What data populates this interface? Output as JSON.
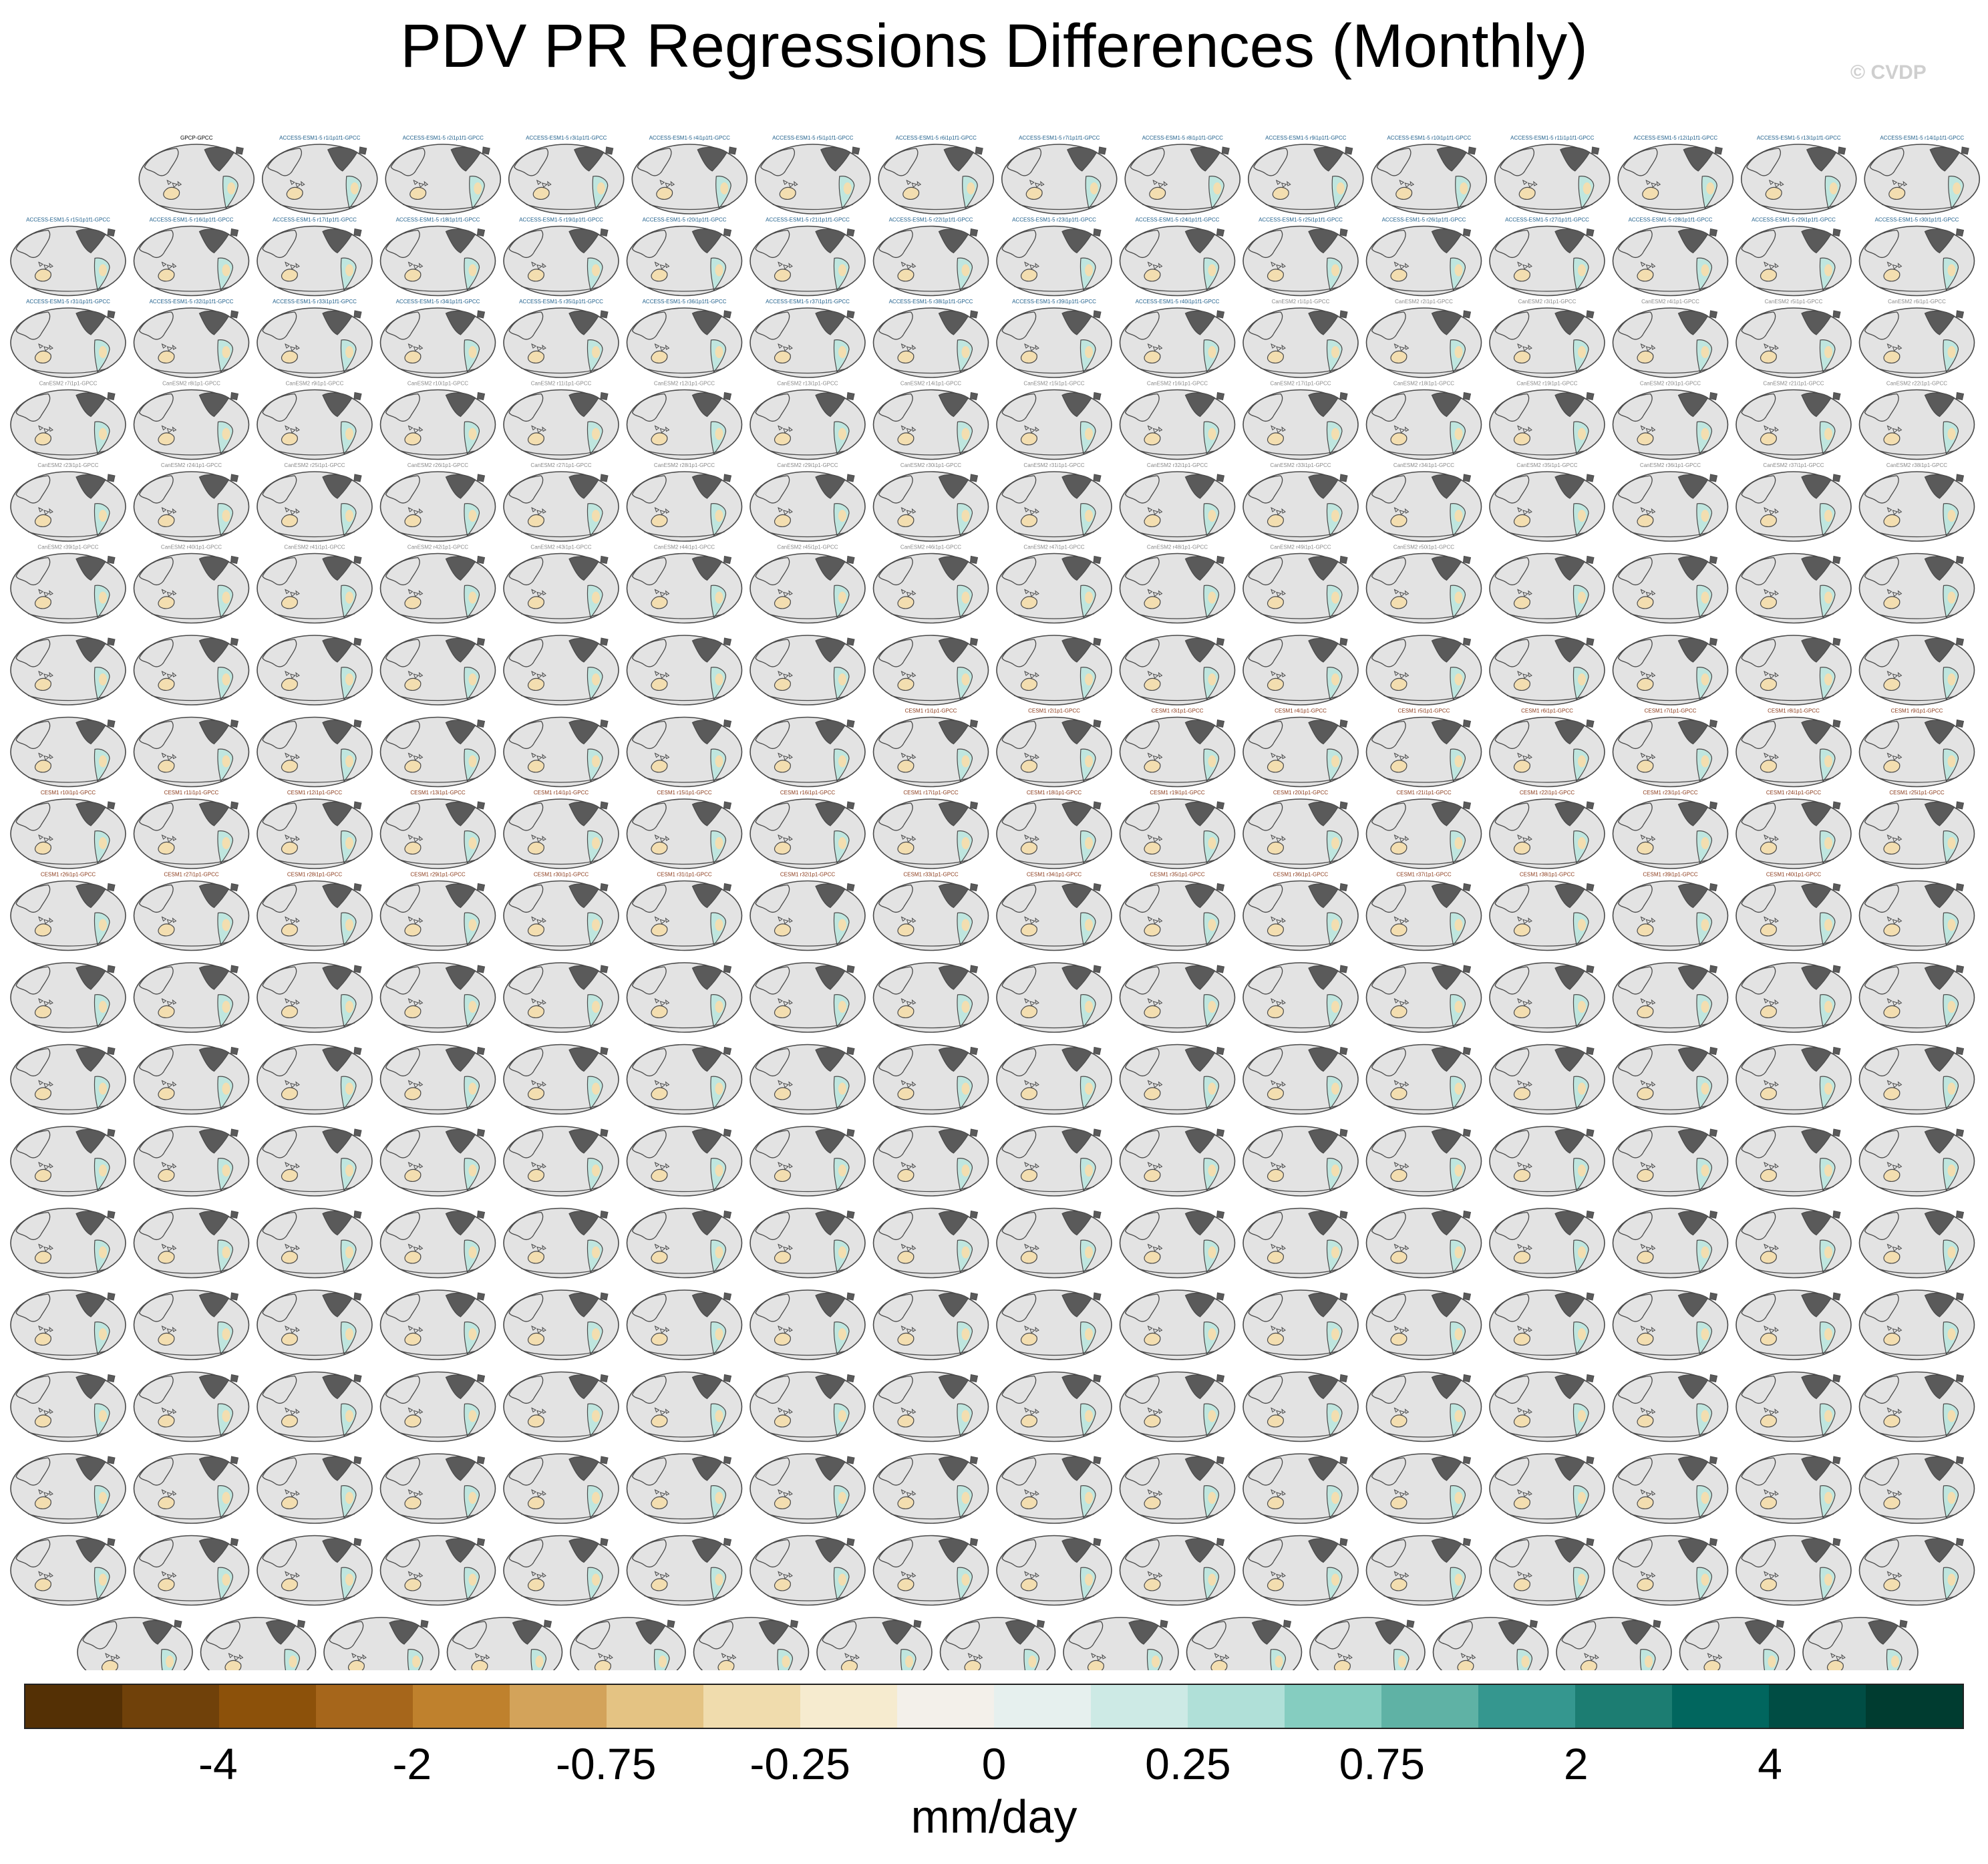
{
  "title": "PDV PR Regressions Differences (Monthly)",
  "credit": "© CVDP",
  "chart_data": {
    "type": "heatmap",
    "description_type": "small-multiples global map panels",
    "layout": {
      "rows": [
        15,
        16,
        16,
        16,
        16,
        16,
        16,
        16,
        16,
        16,
        16,
        16,
        16,
        16,
        16,
        16,
        16,
        16,
        15
      ]
    },
    "panel_titles": [
      "GPCP-GPCC",
      "ACCESS-ESM1-5 r1i1p1f1-GPCC",
      "ACCESS-ESM1-5 r2i1p1f1-GPCC",
      "ACCESS-ESM1-5 r3i1p1f1-GPCC",
      "ACCESS-ESM1-5 r4i1p1f1-GPCC",
      "ACCESS-ESM1-5 r5i1p1f1-GPCC",
      "ACCESS-ESM1-5 r6i1p1f1-GPCC",
      "ACCESS-ESM1-5 r7i1p1f1-GPCC",
      "ACCESS-ESM1-5 r8i1p1f1-GPCC",
      "ACCESS-ESM1-5 r9i1p1f1-GPCC",
      "ACCESS-ESM1-5 r10i1p1f1-GPCC",
      "ACCESS-ESM1-5 r11i1p1f1-GPCC",
      "ACCESS-ESM1-5 r12i1p1f1-GPCC",
      "ACCESS-ESM1-5 r13i1p1f1-GPCC",
      "ACCESS-ESM1-5 r14i1p1f1-GPCC",
      "ACCESS-ESM1-5 r15i1p1f1-GPCC",
      "ACCESS-ESM1-5 r16i1p1f1-GPCC",
      "ACCESS-ESM1-5 r17i1p1f1-GPCC",
      "ACCESS-ESM1-5 r18i1p1f1-GPCC",
      "ACCESS-ESM1-5 r19i1p1f1-GPCC",
      "ACCESS-ESM1-5 r20i1p1f1-GPCC",
      "ACCESS-ESM1-5 r21i1p1f1-GPCC",
      "ACCESS-ESM1-5 r22i1p1f1-GPCC",
      "ACCESS-ESM1-5 r23i1p1f1-GPCC",
      "ACCESS-ESM1-5 r24i1p1f1-GPCC",
      "ACCESS-ESM1-5 r25i1p1f1-GPCC",
      "ACCESS-ESM1-5 r26i1p1f1-GPCC",
      "ACCESS-ESM1-5 r27i1p1f1-GPCC",
      "ACCESS-ESM1-5 r28i1p1f1-GPCC",
      "ACCESS-ESM1-5 r29i1p1f1-GPCC",
      "ACCESS-ESM1-5 r30i1p1f1-GPCC",
      "ACCESS-ESM1-5 r31i1p1f1-GPCC",
      "ACCESS-ESM1-5 r32i1p1f1-GPCC",
      "ACCESS-ESM1-5 r33i1p1f1-GPCC",
      "ACCESS-ESM1-5 r34i1p1f1-GPCC",
      "ACCESS-ESM1-5 r35i1p1f1-GPCC",
      "ACCESS-ESM1-5 r36i1p1f1-GPCC",
      "ACCESS-ESM1-5 r37i1p1f1-GPCC",
      "ACCESS-ESM1-5 r38i1p1f1-GPCC",
      "ACCESS-ESM1-5 r39i1p1f1-GPCC",
      "ACCESS-ESM1-5 r40i1p1f1-GPCC",
      "CanESM2 r1i1p1-GPCC",
      "CanESM2 r2i1p1-GPCC",
      "CanESM2 r3i1p1-GPCC",
      "CanESM2 r4i1p1-GPCC",
      "CanESM2 r5i1p1-GPCC",
      "CanESM2 r6i1p1-GPCC",
      "CanESM2 r7i1p1-GPCC",
      "CanESM2 r8i1p1-GPCC",
      "CanESM2 r9i1p1-GPCC",
      "CanESM2 r10i1p1-GPCC",
      "CanESM2 r11i1p1-GPCC",
      "CanESM2 r12i1p1-GPCC",
      "CanESM2 r13i1p1-GPCC",
      "CanESM2 r14i1p1-GPCC",
      "CanESM2 r15i1p1-GPCC",
      "CanESM2 r16i1p1-GPCC",
      "CanESM2 r17i1p1-GPCC",
      "CanESM2 r18i1p1-GPCC",
      "CanESM2 r19i1p1-GPCC",
      "CanESM2 r20i1p1-GPCC",
      "CanESM2 r21i1p1-GPCC",
      "CanESM2 r22i1p1-GPCC",
      "CanESM2 r23i1p1-GPCC",
      "CanESM2 r24i1p1-GPCC",
      "CanESM2 r25i1p1-GPCC",
      "CanESM2 r26i1p1-GPCC",
      "CanESM2 r27i1p1-GPCC",
      "CanESM2 r28i1p1-GPCC",
      "CanESM2 r29i1p1-GPCC",
      "CanESM2 r30i1p1-GPCC",
      "CanESM2 r31i1p1-GPCC",
      "CanESM2 r32i1p1-GPCC",
      "CanESM2 r33i1p1-GPCC",
      "CanESM2 r34i1p1-GPCC",
      "CanESM2 r35i1p1-GPCC",
      "CanESM2 r36i1p1-GPCC",
      "CanESM2 r37i1p1-GPCC",
      "CanESM2 r38i1p1-GPCC",
      "CanESM2 r39i1p1-GPCC",
      "CanESM2 r40i1p1-GPCC",
      "CanESM2 r41i1p1-GPCC",
      "CanESM2 r42i1p1-GPCC",
      "CanESM2 r43i1p1-GPCC",
      "CanESM2 r44i1p1-GPCC",
      "CanESM2 r45i1p1-GPCC",
      "CanESM2 r46i1p1-GPCC",
      "CanESM2 r47i1p1-GPCC",
      "CanESM2 r48i1p1-GPCC",
      "CanESM2 r49i1p1-GPCC",
      "CanESM2 r50i1p1-GPCC",
      "",
      "",
      "",
      "",
      "",
      "",
      "",
      "",
      "",
      "",
      "",
      "",
      "",
      "",
      "",
      "",
      "",
      "",
      "",
      "",
      "",
      "",
      "",
      "",
      "",
      "",
      "",
      "CESM1 r1i1p1-GPCC",
      "CESM1 r2i1p1-GPCC",
      "CESM1 r3i1p1-GPCC",
      "CESM1 r4i1p1-GPCC",
      "CESM1 r5i1p1-GPCC",
      "CESM1 r6i1p1-GPCC",
      "CESM1 r7i1p1-GPCC",
      "CESM1 r8i1p1-GPCC",
      "CESM1 r9i1p1-GPCC",
      "CESM1 r10i1p1-GPCC",
      "CESM1 r11i1p1-GPCC",
      "CESM1 r12i1p1-GPCC",
      "CESM1 r13i1p1-GPCC",
      "CESM1 r14i1p1-GPCC",
      "CESM1 r15i1p1-GPCC",
      "CESM1 r16i1p1-GPCC",
      "CESM1 r17i1p1-GPCC",
      "CESM1 r18i1p1-GPCC",
      "CESM1 r19i1p1-GPCC",
      "CESM1 r20i1p1-GPCC",
      "CESM1 r21i1p1-GPCC",
      "CESM1 r22i1p1-GPCC",
      "CESM1 r23i1p1-GPCC",
      "CESM1 r24i1p1-GPCC",
      "CESM1 r25i1p1-GPCC",
      "CESM1 r26i1p1-GPCC",
      "CESM1 r27i1p1-GPCC",
      "CESM1 r28i1p1-GPCC",
      "CESM1 r29i1p1-GPCC",
      "CESM1 r30i1p1-GPCC",
      "CESM1 r31i1p1-GPCC",
      "CESM1 r32i1p1-GPCC",
      "CESM1 r33i1p1-GPCC",
      "CESM1 r34i1p1-GPCC",
      "CESM1 r35i1p1-GPCC",
      "CESM1 r36i1p1-GPCC",
      "CESM1 r37i1p1-GPCC",
      "CESM1 r38i1p1-GPCC",
      "CESM1 r39i1p1-GPCC",
      "CESM1 r40i1p1-GPCC"
    ],
    "panel_title_colors": {
      "GPCP-GPCC": "#000000",
      "ACCESS-ESM1-5": "#1f5f8b",
      "CanESM2": "#8a8a8a",
      "CESM1": "#8b3a1a",
      "CESM2": "#8a7fd0",
      "unreadable": "#e3d9b0"
    },
    "colorbar": {
      "colors": [
        "#543005",
        "#70410a",
        "#8c510a",
        "#a6661b",
        "#bf812d",
        "#d3a35a",
        "#e4c383",
        "#f0dcad",
        "#f6ebcf",
        "#f3f0ea",
        "#e6f0ee",
        "#cdeae5",
        "#b0e0d8",
        "#85cdc0",
        "#5fb2a5",
        "#35978f",
        "#1c7d72",
        "#01665e",
        "#004d44",
        "#003c30"
      ],
      "tick_labels": [
        "-4",
        "-2",
        "-0.75",
        "-0.25",
        "0",
        "0.25",
        "0.75",
        "2",
        "4"
      ],
      "units": "mm/day"
    },
    "map_colors": {
      "background": "#e3e3e3",
      "coastline": "#4a4a4a",
      "land_dark": "#5a5a5a",
      "dry_patch": "#f3deb0",
      "wet_patch": "#bfe6df"
    }
  }
}
